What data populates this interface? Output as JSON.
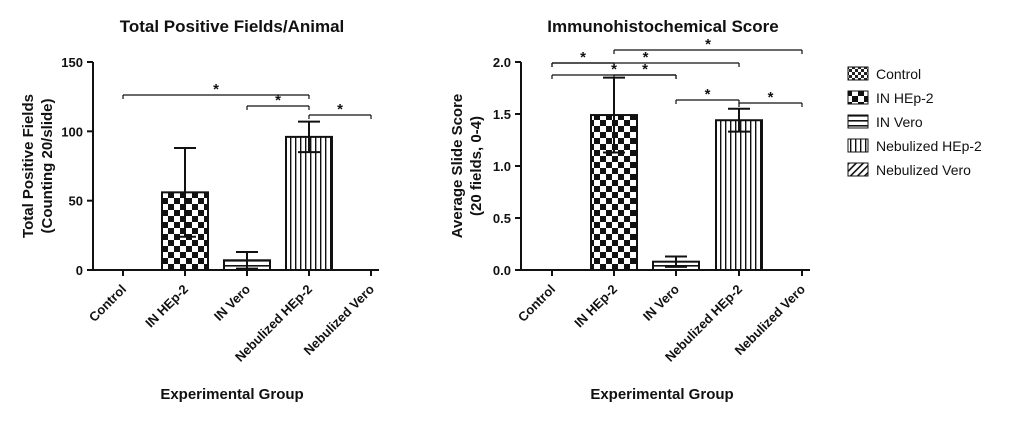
{
  "chart_data": [
    {
      "type": "bar",
      "title": "Total Positive Fields/Animal",
      "xlabel": "Experimental Group",
      "ylabel_lines": [
        "Total  Positive Fields",
        "(Counting 20/slide)"
      ],
      "categories": [
        "Control",
        "IN HEp-2",
        "IN Vero",
        "Nebulized HEp-2",
        "Nebulized Vero"
      ],
      "values": [
        0,
        56,
        7,
        96,
        0
      ],
      "errors": [
        0,
        32,
        6,
        11,
        0
      ],
      "ylim": [
        0,
        150
      ],
      "yticks": [
        0,
        50,
        100,
        150
      ],
      "tick_labels": [
        "0",
        "50",
        "100",
        "150"
      ],
      "significance": [
        {
          "from": 0,
          "to": 3,
          "label": "*"
        },
        {
          "from": 2,
          "to": 3,
          "label": "*"
        },
        {
          "from": 3,
          "to": 4,
          "label": "*"
        }
      ]
    },
    {
      "type": "bar",
      "title": "Immunohistochemical Score",
      "xlabel": "Experimental Group",
      "ylabel_lines": [
        "Average Slide Score",
        "(20 fields, 0-4)"
      ],
      "categories": [
        "Control",
        "IN HEp-2",
        "IN Vero",
        "Nebulized HEp-2",
        "Nebulized Vero"
      ],
      "values": [
        0,
        1.49,
        0.08,
        1.44,
        0
      ],
      "errors": [
        0,
        0.36,
        0.05,
        0.11,
        0
      ],
      "ylim": [
        0,
        2.0
      ],
      "yticks": [
        0,
        0.5,
        1.0,
        1.5,
        2.0
      ],
      "tick_labels": [
        "0.0",
        "0.5",
        "1.0",
        "1.5",
        "2.0"
      ],
      "significance": [
        {
          "from": 0,
          "to": 1,
          "label": "*"
        },
        {
          "from": 0,
          "to": 2,
          "label": "*"
        },
        {
          "from": 1,
          "to": 2,
          "label": "*"
        },
        {
          "from": 0,
          "to": 3,
          "label": "*"
        },
        {
          "from": 1,
          "to": 4,
          "label": "*"
        },
        {
          "from": 2,
          "to": 3,
          "label": "*"
        },
        {
          "from": 3,
          "to": 4,
          "label": "*"
        }
      ]
    }
  ],
  "legend": {
    "items": [
      {
        "label": "Control",
        "pattern": "fine-check"
      },
      {
        "label": "IN HEp-2",
        "pattern": "checker"
      },
      {
        "label": "IN Vero",
        "pattern": "horizontal"
      },
      {
        "label": "Nebulized HEp-2",
        "pattern": "vertical"
      },
      {
        "label": "Nebulized Vero",
        "pattern": "diagonal"
      }
    ]
  }
}
